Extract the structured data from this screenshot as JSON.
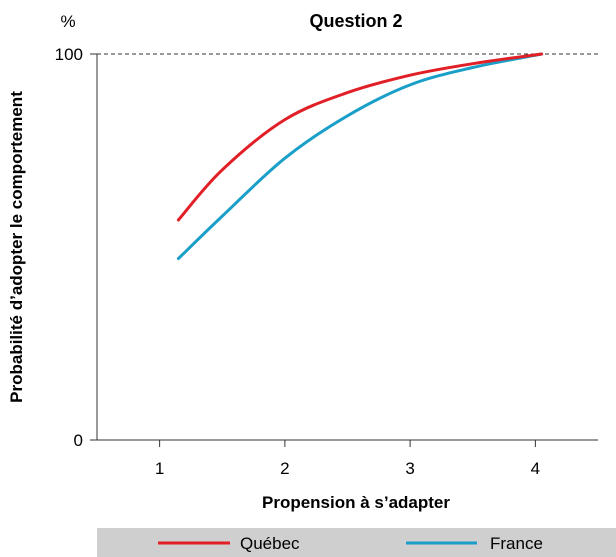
{
  "chart_data": {
    "type": "line",
    "title": "Question 2",
    "unit_label": "%",
    "xlabel": "Propension à s’adapter",
    "ylabel": "Probabilité d’adopter le comportement",
    "xlim": [
      0.5,
      4.5
    ],
    "ylim": [
      0,
      100
    ],
    "x_ticks": [
      1,
      2,
      3,
      4
    ],
    "x_tick_labels": [
      "1",
      "2",
      "3",
      "4"
    ],
    "y_ticks": [
      0,
      100
    ],
    "y_tick_labels": [
      "0",
      "100"
    ],
    "reference_line": {
      "y": 100,
      "style": "dashed"
    },
    "grid": false,
    "legend_position": "bottom",
    "series": [
      {
        "name": "Québec",
        "color": "#e11f26",
        "x": [
          1.15,
          1.5,
          2.0,
          2.5,
          3.0,
          3.5,
          4.05
        ],
        "y": [
          57,
          70,
          83,
          90,
          94.5,
          97.5,
          100
        ]
      },
      {
        "name": "France",
        "color": "#1a9fc9",
        "x": [
          1.15,
          1.5,
          2.0,
          2.5,
          3.0,
          3.5,
          4.05
        ],
        "y": [
          47,
          58,
          73,
          84,
          92,
          96.5,
          100
        ]
      }
    ]
  }
}
